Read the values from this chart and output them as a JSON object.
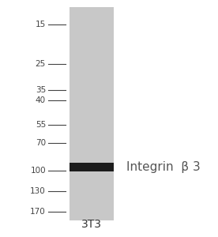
{
  "title": "3T3",
  "protein_label": "Integrin  β 3",
  "mw_markers": [
    170,
    130,
    100,
    70,
    55,
    40,
    35,
    25,
    15
  ],
  "band_mw": 95,
  "gel_color": "#c8c8c8",
  "band_color": "#1c1c1c",
  "bg_color": "#ffffff",
  "title_fontsize": 10,
  "marker_fontsize": 7.5,
  "label_fontsize": 11
}
